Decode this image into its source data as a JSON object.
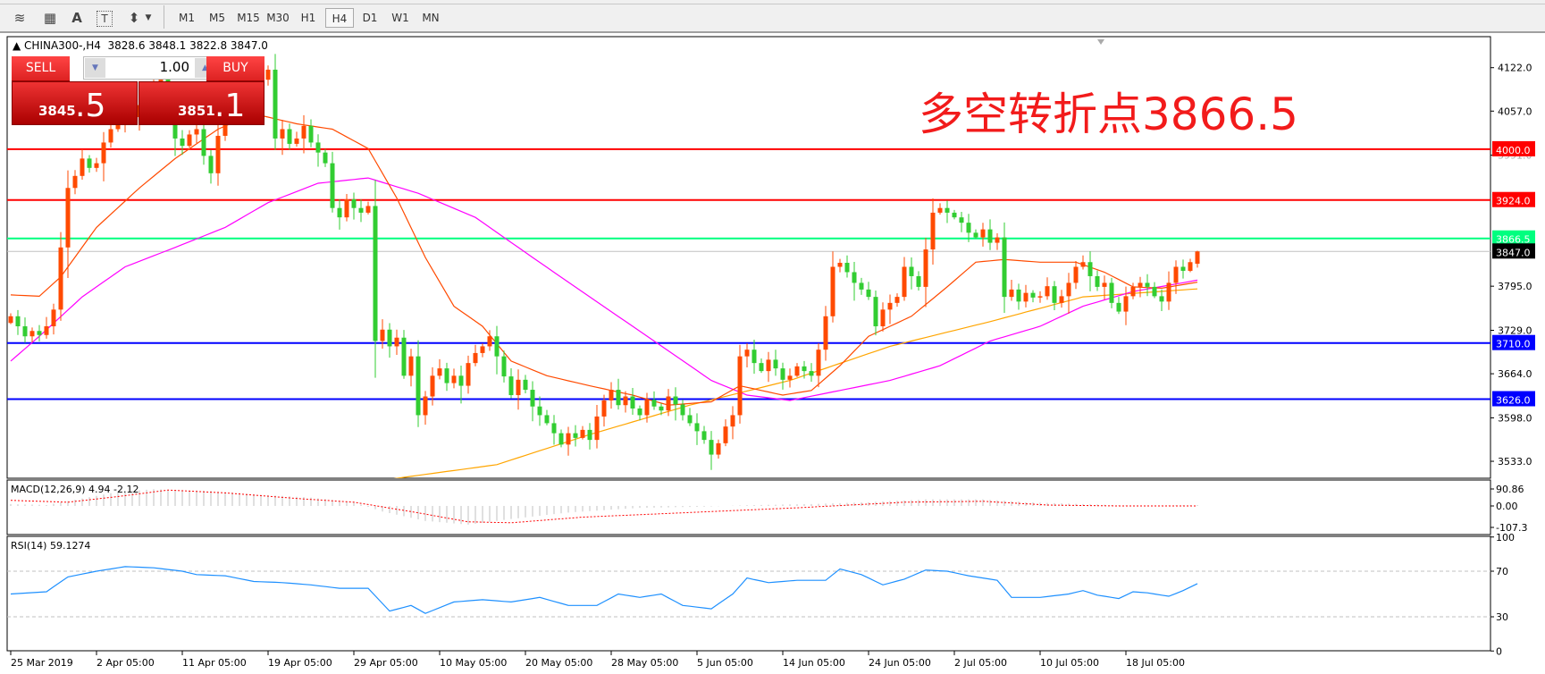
{
  "toolbar": {
    "icons": [
      "elliott-wave-icon",
      "fibonacci-icon",
      "text-icon",
      "text-label-icon",
      "arrow-marker-icon"
    ],
    "icon_glyphs": [
      "≋",
      "▦",
      "A",
      "T",
      "⬍"
    ],
    "timeframes": [
      "M1",
      "M5",
      "M15",
      "M30",
      "H1",
      "H4",
      "D1",
      "W1",
      "MN"
    ],
    "selected_timeframe": "H4"
  },
  "header": {
    "text": "CHINA300-,H4  3828.6 3848.1 3822.8 3847.0"
  },
  "trade_panel": {
    "sell_label": "SELL",
    "buy_label": "BUY",
    "lots": "1.00",
    "sell_small": "3845",
    "sell_big": ".5",
    "buy_small": "3851",
    "buy_big": ".1"
  },
  "annotation": "多空转折点3866.5",
  "chart_data": {
    "type": "candlestick",
    "symbol": "CHINA300-",
    "timeframe": "H4",
    "colors": {
      "bull": "#ff4a00",
      "bear": "#32cd32",
      "ma_fast": "#ff4a00",
      "ma_mid": "#ff00ff",
      "ma_slow": "#ffa500",
      "rsi": "#1e90ff",
      "macd_signal": "#ff0000",
      "macd_hist": "#c0c0c0"
    },
    "closes": [
      3750,
      3735,
      3720,
      3728,
      3722,
      3735,
      3760,
      3853,
      3942,
      3960,
      3986,
      3972,
      3979,
      4010,
      4030,
      4045,
      4060,
      4048,
      4066,
      4075,
      4095,
      4119,
      4070,
      4016,
      4005,
      4022,
      4030,
      3990,
      3964,
      4020,
      4060,
      4068,
      4075,
      4082,
      4096,
      4104,
      4119,
      4016,
      4030,
      4008,
      4016,
      4035,
      4010,
      3995,
      3979,
      3912,
      3898,
      3925,
      3912,
      3905,
      3915,
      3713,
      3730,
      3705,
      3718,
      3661,
      3690,
      3602,
      3630,
      3661,
      3672,
      3650,
      3661,
      3646,
      3680,
      3695,
      3705,
      3720,
      3690,
      3660,
      3632,
      3655,
      3640,
      3615,
      3602,
      3590,
      3575,
      3558,
      3575,
      3568,
      3580,
      3565,
      3600,
      3624,
      3640,
      3617,
      3630,
      3612,
      3602,
      3625,
      3615,
      3609,
      3630,
      3618,
      3602,
      3590,
      3578,
      3565,
      3543,
      3560,
      3585,
      3602,
      3690,
      3700,
      3680,
      3668,
      3685,
      3672,
      3655,
      3661,
      3675,
      3668,
      3661,
      3700,
      3750,
      3824,
      3830,
      3816,
      3800,
      3790,
      3779,
      3735,
      3760,
      3770,
      3779,
      3824,
      3810,
      3794,
      3850,
      3905,
      3912,
      3905,
      3898,
      3890,
      3875,
      3868,
      3880,
      3860,
      3868,
      3779,
      3790,
      3772,
      3785,
      3778,
      3780,
      3795,
      3770,
      3780,
      3800,
      3824,
      3831,
      3810,
      3794,
      3800,
      3770,
      3757,
      3780,
      3794,
      3800,
      3794,
      3780,
      3772,
      3800,
      3824,
      3818,
      3831,
      3847
    ],
    "last_bar": {
      "open": 3828.6,
      "high": 3848.1,
      "low": 3822.8,
      "close": 3847.0
    },
    "ma_fast": [
      [
        0,
        3782
      ],
      [
        4,
        3780
      ],
      [
        7,
        3809
      ],
      [
        12,
        3883
      ],
      [
        18,
        3942
      ],
      [
        23,
        3986
      ],
      [
        29,
        4030
      ],
      [
        34,
        4053
      ],
      [
        40,
        4038
      ],
      [
        45,
        4030
      ],
      [
        50,
        4001
      ],
      [
        54,
        3927
      ],
      [
        58,
        3838
      ],
      [
        62,
        3765
      ],
      [
        66,
        3735
      ],
      [
        70,
        3683
      ],
      [
        75,
        3661
      ],
      [
        81,
        3646
      ],
      [
        87,
        3632
      ],
      [
        92,
        3617
      ],
      [
        98,
        3622
      ],
      [
        102,
        3646
      ],
      [
        108,
        3632
      ],
      [
        112,
        3639
      ],
      [
        116,
        3676
      ],
      [
        120,
        3720
      ],
      [
        126,
        3750
      ],
      [
        131,
        3794
      ],
      [
        135,
        3831
      ],
      [
        139,
        3835
      ],
      [
        144,
        3831
      ],
      [
        149,
        3831
      ],
      [
        153,
        3816
      ],
      [
        157,
        3794
      ],
      [
        161,
        3792
      ],
      [
        166,
        3801
      ]
    ],
    "ma_mid": [
      [
        0,
        3683
      ],
      [
        4,
        3720
      ],
      [
        10,
        3779
      ],
      [
        16,
        3824
      ],
      [
        23,
        3853
      ],
      [
        30,
        3883
      ],
      [
        36,
        3920
      ],
      [
        43,
        3949
      ],
      [
        50,
        3957
      ],
      [
        57,
        3934
      ],
      [
        65,
        3898
      ],
      [
        73,
        3838
      ],
      [
        81,
        3779
      ],
      [
        90,
        3713
      ],
      [
        98,
        3654
      ],
      [
        103,
        3632
      ],
      [
        109,
        3624
      ],
      [
        116,
        3639
      ],
      [
        123,
        3654
      ],
      [
        130,
        3676
      ],
      [
        137,
        3713
      ],
      [
        144,
        3735
      ],
      [
        150,
        3765
      ],
      [
        157,
        3787
      ],
      [
        166,
        3804
      ]
    ],
    "ma_slow": [
      [
        53,
        3506
      ],
      [
        68,
        3528
      ],
      [
        81,
        3573
      ],
      [
        95,
        3617
      ],
      [
        109,
        3654
      ],
      [
        123,
        3705
      ],
      [
        137,
        3742
      ],
      [
        150,
        3779
      ],
      [
        166,
        3791
      ]
    ],
    "price_axis": {
      "ticks": [
        "4122.0",
        "4057.0",
        "3991.0",
        "3795.0",
        "3729.0",
        "3664.0",
        "3598.0",
        "3533.0"
      ]
    },
    "levels": [
      {
        "value": 4000.0,
        "label": "4000.0",
        "color": "#ff0000"
      },
      {
        "value": 3924.0,
        "label": "3924.0",
        "color": "#ff0000"
      },
      {
        "value": 3866.5,
        "label": "3866.5",
        "color": "#00ff7f"
      },
      {
        "value": 3847.0,
        "label": "3847.0",
        "color": "#000000",
        "line": "#c0c0c0"
      },
      {
        "value": 3710.0,
        "label": "3710.0",
        "color": "#0000ff"
      },
      {
        "value": 3626.0,
        "label": "3626.0",
        "color": "#0000ff"
      }
    ],
    "macd": {
      "label": "MACD(12,26,9) 4.94 -2.12",
      "ticks": [
        "90.86",
        "0.00",
        "-107.3"
      ],
      "histogram": [
        [
          0,
          10
        ],
        [
          5,
          5
        ],
        [
          10,
          40
        ],
        [
          15,
          75
        ],
        [
          20,
          90
        ],
        [
          28,
          80
        ],
        [
          35,
          60
        ],
        [
          42,
          45
        ],
        [
          48,
          20
        ],
        [
          52,
          -30
        ],
        [
          58,
          -80
        ],
        [
          64,
          -100
        ],
        [
          70,
          -70
        ],
        [
          78,
          -35
        ],
        [
          88,
          -10
        ],
        [
          96,
          -5
        ],
        [
          104,
          5
        ],
        [
          112,
          10
        ],
        [
          120,
          20
        ],
        [
          128,
          35
        ],
        [
          136,
          35
        ],
        [
          142,
          20
        ],
        [
          150,
          10
        ],
        [
          158,
          0
        ],
        [
          166,
          5
        ]
      ],
      "signal": [
        [
          0,
          30
        ],
        [
          8,
          20
        ],
        [
          15,
          50
        ],
        [
          22,
          85
        ],
        [
          30,
          70
        ],
        [
          40,
          40
        ],
        [
          48,
          20
        ],
        [
          56,
          -30
        ],
        [
          64,
          -85
        ],
        [
          70,
          -90
        ],
        [
          80,
          -60
        ],
        [
          95,
          -35
        ],
        [
          110,
          -10
        ],
        [
          125,
          20
        ],
        [
          136,
          25
        ],
        [
          145,
          5
        ],
        [
          155,
          0
        ],
        [
          166,
          0
        ]
      ]
    },
    "rsi": {
      "label": "RSI(14) 59.1274",
      "ticks": [
        "100",
        "70",
        "30",
        "0"
      ],
      "levels": [
        70,
        30
      ],
      "values": [
        [
          0,
          50
        ],
        [
          5,
          52
        ],
        [
          8,
          65
        ],
        [
          12,
          70
        ],
        [
          16,
          74
        ],
        [
          20,
          73
        ],
        [
          24,
          70
        ],
        [
          26,
          67
        ],
        [
          30,
          66
        ],
        [
          34,
          61
        ],
        [
          38,
          60
        ],
        [
          42,
          58
        ],
        [
          46,
          55
        ],
        [
          50,
          55
        ],
        [
          53,
          35
        ],
        [
          56,
          40
        ],
        [
          58,
          33
        ],
        [
          62,
          43
        ],
        [
          66,
          45
        ],
        [
          70,
          43
        ],
        [
          74,
          47
        ],
        [
          78,
          40
        ],
        [
          82,
          40
        ],
        [
          85,
          50
        ],
        [
          88,
          47
        ],
        [
          91,
          50
        ],
        [
          94,
          40
        ],
        [
          98,
          37
        ],
        [
          101,
          50
        ],
        [
          103,
          64
        ],
        [
          106,
          60
        ],
        [
          110,
          62
        ],
        [
          114,
          62
        ],
        [
          116,
          72
        ],
        [
          119,
          67
        ],
        [
          122,
          58
        ],
        [
          125,
          63
        ],
        [
          128,
          71
        ],
        [
          131,
          70
        ],
        [
          134,
          66
        ],
        [
          138,
          62
        ],
        [
          140,
          47
        ],
        [
          144,
          47
        ],
        [
          148,
          50
        ],
        [
          150,
          53
        ],
        [
          152,
          49
        ],
        [
          155,
          46
        ],
        [
          157,
          52
        ],
        [
          159,
          51
        ],
        [
          162,
          48
        ],
        [
          164,
          53
        ],
        [
          166,
          59.1
        ]
      ]
    },
    "time_axis": [
      "25 Mar 2019",
      "2 Apr 05:00",
      "11 Apr 05:00",
      "19 Apr 05:00",
      "29 Apr 05:00",
      "10 May 05:00",
      "20 May 05:00",
      "28 May 05:00",
      "5 Jun 05:00",
      "14 Jun 05:00",
      "24 Jun 05:00",
      "2 Jul 05:00",
      "10 Jul 05:00",
      "18 Jul 05:00"
    ]
  }
}
